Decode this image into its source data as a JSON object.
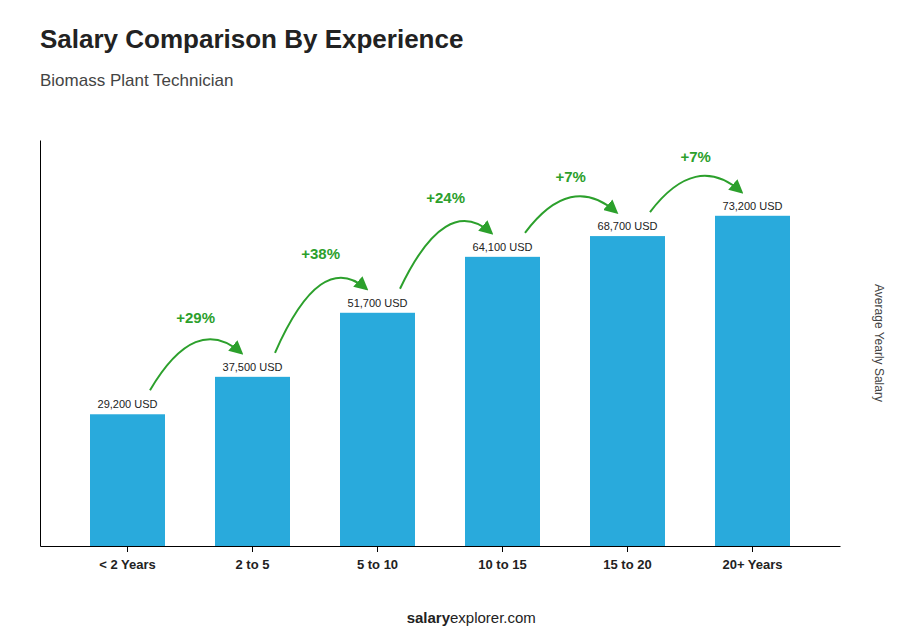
{
  "chart_data": {
    "type": "bar",
    "title": "Salary Comparison By Experience",
    "subtitle": "Biomass Plant Technician",
    "ylabel": "Average Yearly Salary",
    "categories": [
      "< 2 Years",
      "2 to 5",
      "5 to 10",
      "10 to 15",
      "15 to 20",
      "20+ Years"
    ],
    "values": [
      29200,
      37500,
      51700,
      64100,
      68700,
      73200
    ],
    "value_labels": [
      "29,200 USD",
      "37,500 USD",
      "51,700 USD",
      "64,100 USD",
      "68,700 USD",
      "73,200 USD"
    ],
    "data_labels": true,
    "annotations": [
      "+29%",
      "+38%",
      "+24%",
      "+7%",
      "+7%"
    ],
    "footer": [
      "salary",
      "explorer.com"
    ],
    "color": "#29AADC",
    "ylim": [
      0,
      90000
    ],
    "grid": false,
    "tick_labels": "x"
  }
}
